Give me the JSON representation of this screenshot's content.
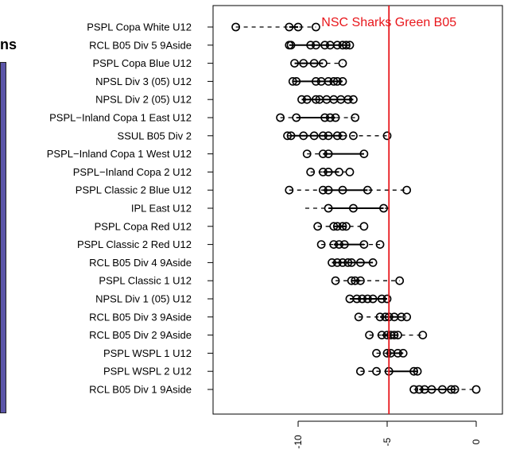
{
  "background": {
    "partial_text": "ns",
    "panel_color": "#5b55a8"
  },
  "chart_data": {
    "type": "dot-range",
    "title": "",
    "xlabel": "",
    "ylabel": "",
    "xlim": [
      -14.2,
      1.5
    ],
    "x_ticks": [
      -10,
      -5,
      0
    ],
    "x_tick_labels": [
      "-10",
      "-5",
      "0"
    ],
    "reference_line": {
      "x": -4.9,
      "label": "NSC Sharks Green B05",
      "color": "#e8161b"
    },
    "rows": [
      {
        "category": "PSPL Copa White U12",
        "points": [
          -13.5,
          -10.5,
          -10.0,
          -9.0
        ],
        "range": [
          -13.5,
          -9.0
        ],
        "solid": [
          -10.5,
          -10.0
        ]
      },
      {
        "category": "RCL B05 Div 5 9Aside",
        "points": [
          -10.5,
          -10.4,
          -9.3,
          -9.0,
          -8.5,
          -8.2,
          -7.8,
          -7.5,
          -7.3,
          -7.1
        ],
        "range": [
          -10.5,
          -7.1
        ],
        "solid": [
          -10.5,
          -7.1
        ]
      },
      {
        "category": "PSPL Copa Blue U12",
        "points": [
          -10.2,
          -9.7,
          -9.1,
          -8.6,
          -7.5
        ],
        "range": [
          -10.2,
          -7.5
        ],
        "solid": [
          -10.2,
          -8.6
        ]
      },
      {
        "category": "NPSL Div 3 (05) U12",
        "points": [
          -10.3,
          -10.1,
          -9.0,
          -8.7,
          -8.3,
          -8.0,
          -7.8,
          -7.5
        ],
        "range": [
          -10.3,
          -7.5
        ],
        "solid": [
          -10.3,
          -7.5
        ]
      },
      {
        "category": "NPSL Div 2 (05) U12",
        "points": [
          -9.8,
          -9.5,
          -9.0,
          -8.8,
          -8.4,
          -8.0,
          -7.6,
          -7.2,
          -6.9
        ],
        "range": [
          -9.8,
          -6.9
        ],
        "solid": [
          -9.8,
          -6.9
        ]
      },
      {
        "category": "PSPL−Inland Copa 1 East U12",
        "points": [
          -11.0,
          -10.1,
          -8.5,
          -8.2,
          -7.9,
          -6.8
        ],
        "range": [
          -11.0,
          -6.8
        ],
        "solid": [
          -10.1,
          -7.9
        ]
      },
      {
        "category": "SSUL B05 Div 2",
        "points": [
          -10.6,
          -10.4,
          -9.7,
          -9.1,
          -8.6,
          -8.3,
          -7.8,
          -7.5,
          -6.9,
          -5.0
        ],
        "range": [
          -10.6,
          -5.0
        ],
        "solid": [
          -10.4,
          -7.5
        ]
      },
      {
        "category": "PSPL−Inland Copa 1 West U12",
        "points": [
          -9.5,
          -8.6,
          -8.3,
          -6.3
        ],
        "range": [
          -9.5,
          -6.3
        ],
        "solid": [
          -8.6,
          -6.3
        ]
      },
      {
        "category": "PSPL−Inland Copa 2 U12",
        "points": [
          -9.3,
          -8.6,
          -8.3,
          -7.7,
          -7.1
        ],
        "range": [
          -9.3,
          -7.1
        ],
        "solid": [
          -8.6,
          -7.7
        ]
      },
      {
        "category": "PSPL Classic 2 Blue U12",
        "points": [
          -10.5,
          -8.6,
          -8.3,
          -7.5,
          -6.1,
          -3.9
        ],
        "range": [
          -10.5,
          -3.9
        ],
        "solid": [
          -8.6,
          -6.1
        ]
      },
      {
        "category": "IPL East U12",
        "points": [
          -8.3,
          -6.9,
          -5.2
        ],
        "range": [
          -9.6,
          -4.8
        ],
        "solid": [
          -8.3,
          -5.2
        ]
      },
      {
        "category": "PSPL Copa Red U12",
        "points": [
          -8.9,
          -8.0,
          -7.8,
          -7.5,
          -7.3,
          -6.3
        ],
        "range": [
          -8.9,
          -6.3
        ],
        "solid": [
          -8.0,
          -7.3
        ]
      },
      {
        "category": "PSPL Classic 2 Red U12",
        "points": [
          -8.7,
          -8.0,
          -7.7,
          -7.4,
          -6.3,
          -5.4
        ],
        "range": [
          -8.7,
          -5.4
        ],
        "solid": [
          -8.0,
          -6.3
        ]
      },
      {
        "category": "RCL B05 Div 4 9Aside",
        "points": [
          -8.1,
          -7.8,
          -7.5,
          -7.2,
          -7.0,
          -6.5,
          -5.8
        ],
        "range": [
          -8.1,
          -5.8
        ],
        "solid": [
          -8.1,
          -5.8
        ]
      },
      {
        "category": "PSPL Classic 1 U12",
        "points": [
          -7.9,
          -7.0,
          -6.8,
          -6.5,
          -4.3
        ],
        "range": [
          -7.9,
          -4.3
        ],
        "solid": [
          -7.0,
          -6.5
        ]
      },
      {
        "category": "NPSL Div 1 (05) U12",
        "points": [
          -7.1,
          -6.7,
          -6.4,
          -6.1,
          -5.8,
          -5.3,
          -5.0
        ],
        "range": [
          -7.1,
          -4.9
        ],
        "solid": [
          -7.1,
          -5.0
        ]
      },
      {
        "category": "RCL B05 Div 3 9Aside",
        "points": [
          -6.6,
          -5.4,
          -5.1,
          -4.9,
          -4.6,
          -4.2,
          -3.9
        ],
        "range": [
          -6.6,
          -3.9
        ],
        "solid": [
          -5.4,
          -4.2
        ]
      },
      {
        "category": "RCL B05 Div 2 9Aside",
        "points": [
          -6.0,
          -5.3,
          -5.0,
          -4.8,
          -4.6,
          -4.4,
          -3.0
        ],
        "range": [
          -6.0,
          -3.0
        ],
        "solid": [
          -5.3,
          -4.4
        ]
      },
      {
        "category": "PSPL WSPL 1 U12",
        "points": [
          -5.6,
          -5.0,
          -4.8,
          -4.4,
          -4.1
        ],
        "range": [
          -5.6,
          -4.1
        ],
        "solid": [
          -5.0,
          -4.1
        ]
      },
      {
        "category": "PSPL WSPL 2 U12",
        "points": [
          -6.5,
          -5.6,
          -4.9,
          -3.5,
          -3.3
        ],
        "range": [
          -6.5,
          -3.3
        ],
        "solid": [
          -4.9,
          -3.3
        ]
      },
      {
        "category": "RCL B05 Div 1 9Aside",
        "points": [
          -3.5,
          -3.2,
          -2.9,
          -2.5,
          -1.9,
          -1.4,
          -1.2,
          0.0
        ],
        "range": [
          -3.5,
          0.0
        ],
        "solid": [
          -3.2,
          -1.2
        ]
      }
    ]
  }
}
